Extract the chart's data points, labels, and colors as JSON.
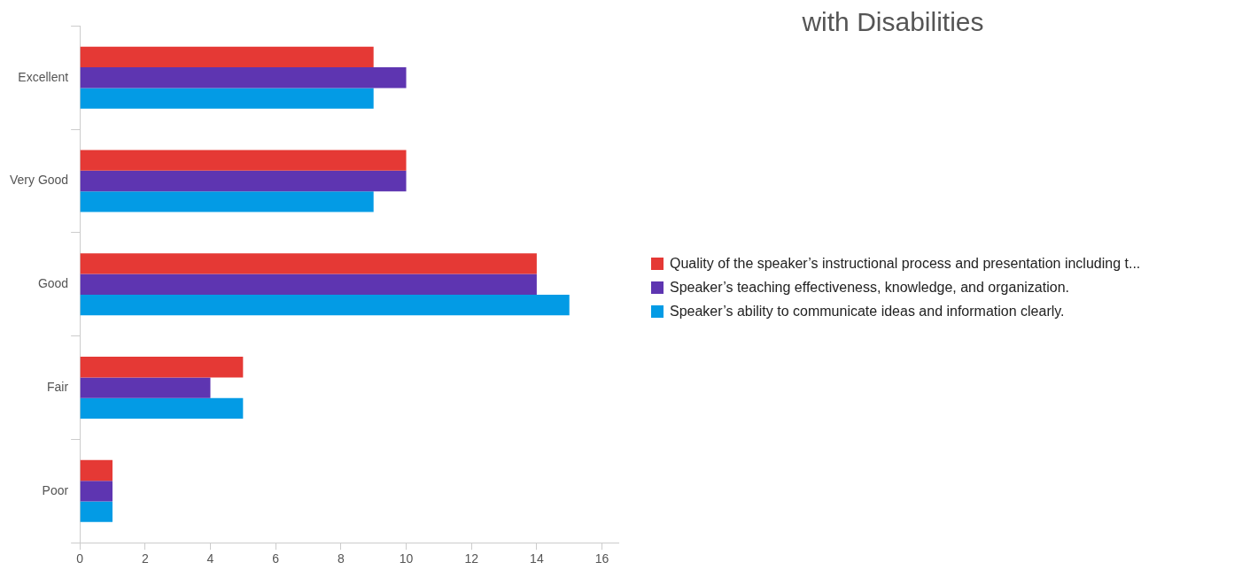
{
  "chart_data": {
    "type": "bar",
    "orientation": "horizontal",
    "title": "with Disabilities",
    "categories": [
      "Excellent",
      "Very Good",
      "Good",
      "Fair",
      "Poor"
    ],
    "series": [
      {
        "name": "Quality of the speaker’s instructional process and presentation including t...",
        "color": "#e53935",
        "values": [
          9,
          10,
          14,
          5,
          1
        ]
      },
      {
        "name": "Speaker’s teaching effectiveness, knowledge, and organization.",
        "color": "#5e35b1",
        "values": [
          10,
          10,
          14,
          4,
          1
        ]
      },
      {
        "name": "Speaker’s ability to communicate ideas and information clearly.",
        "color": "#039be5",
        "values": [
          9,
          9,
          15,
          5,
          1
        ]
      }
    ],
    "xlim": [
      0,
      16.5
    ],
    "xticks": [
      0,
      2,
      4,
      6,
      8,
      10,
      12,
      14,
      16
    ],
    "legend": "right"
  }
}
